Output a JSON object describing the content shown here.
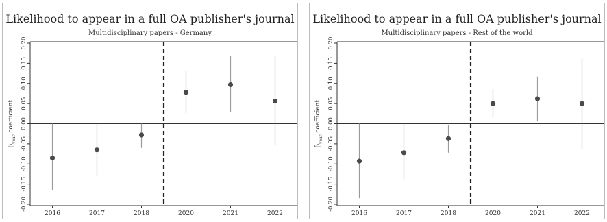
{
  "chart_data": [
    {
      "type": "scatter",
      "title": "Likelihood to appear in a full OA publisher's journal",
      "subtitle": "Multidisciplinary papers - Germany",
      "ylabel": "β",
      "ylabel_sub": "year",
      "ylabel_rest": " coefficient",
      "categories": [
        "2016",
        "2017",
        "2018",
        "2020",
        "2021",
        "2022"
      ],
      "values": [
        -0.085,
        -0.065,
        -0.028,
        0.078,
        0.097,
        0.056
      ],
      "ci_low": [
        -0.165,
        -0.13,
        -0.06,
        0.026,
        0.028,
        -0.053
      ],
      "ci_high": [
        0.0,
        0.0,
        0.0,
        0.132,
        0.168,
        0.168
      ],
      "ylim": [
        -0.2,
        0.2
      ],
      "yticks": [
        "-0.20",
        "-0.15",
        "-0.10",
        "-0.05",
        "0.00",
        "0.05",
        "0.10",
        "0.15",
        "0.20"
      ],
      "reference_line": 0,
      "divider_between": [
        "2018",
        "2020"
      ],
      "grid": false
    },
    {
      "type": "scatter",
      "title": "Likelihood to appear in a full OA publisher's journal",
      "subtitle": "Multidisciplinary papers - Rest of the world",
      "ylabel": "β",
      "ylabel_sub": "year",
      "ylabel_rest": " coefficient",
      "categories": [
        "2016",
        "2017",
        "2018",
        "2020",
        "2021",
        "2022"
      ],
      "values": [
        -0.093,
        -0.072,
        -0.037,
        0.05,
        0.062,
        0.05
      ],
      "ci_low": [
        -0.185,
        -0.138,
        -0.072,
        0.016,
        0.006,
        -0.062
      ],
      "ci_high": [
        0.0,
        0.0,
        -0.003,
        0.086,
        0.117,
        0.162
      ],
      "ylim": [
        -0.2,
        0.2
      ],
      "yticks": [
        "-0.20",
        "-0.15",
        "-0.10",
        "-0.05",
        "0.00",
        "0.05",
        "0.10",
        "0.15",
        "0.20"
      ],
      "reference_line": 0,
      "divider_between": [
        "2018",
        "2020"
      ],
      "grid": false
    }
  ]
}
